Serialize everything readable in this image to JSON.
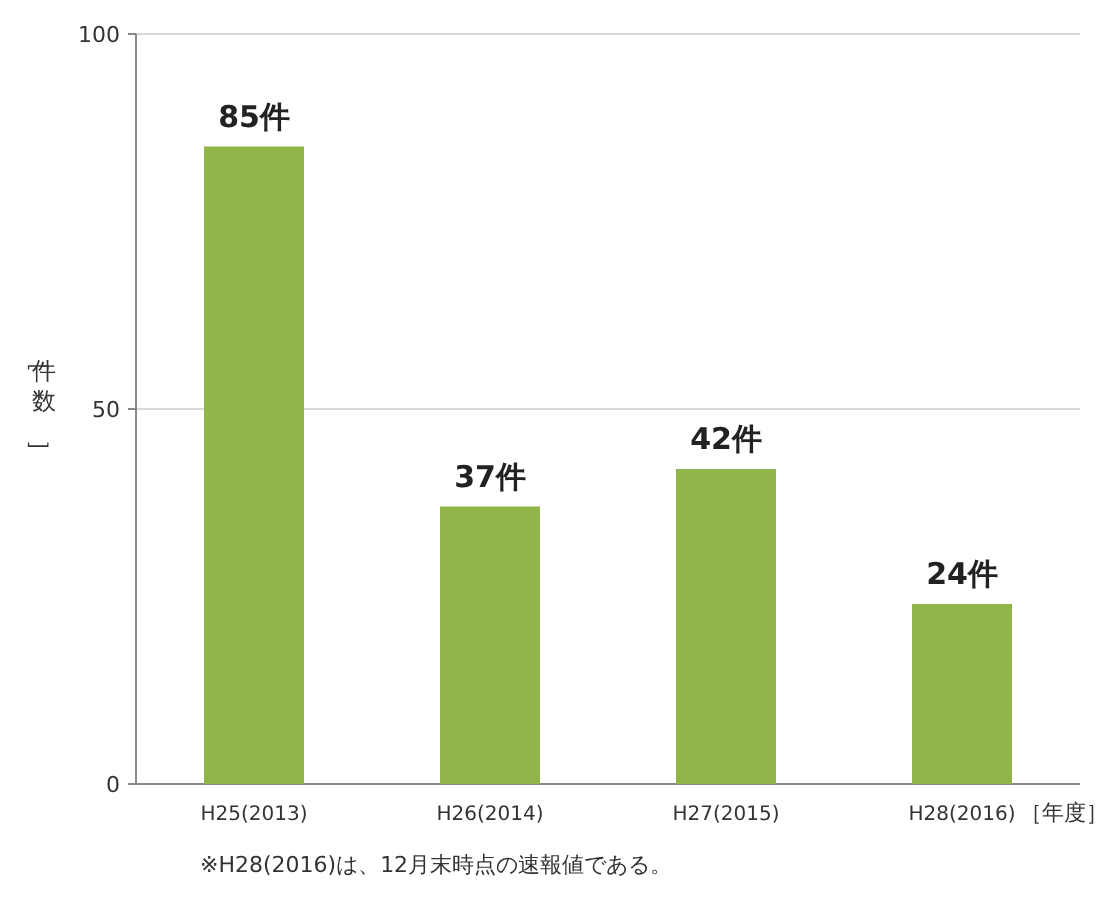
{
  "chart_data": {
    "type": "bar",
    "categories": [
      "H25(2013)",
      "H26(2014)",
      "H27(2015)",
      "H28(2016)"
    ],
    "values": [
      85,
      37,
      42,
      24
    ],
    "value_labels": [
      "85件",
      "37件",
      "42件",
      "24件"
    ],
    "color": "#92b54a",
    "ylim": [
      0,
      100
    ],
    "yticks": [
      0,
      50,
      100
    ],
    "grid": "y",
    "ylabel": "［件数］",
    "xlabel": "［年度］",
    "annotations": [
      "※H28(2016)は、12月末時点の速報値である。"
    ]
  }
}
